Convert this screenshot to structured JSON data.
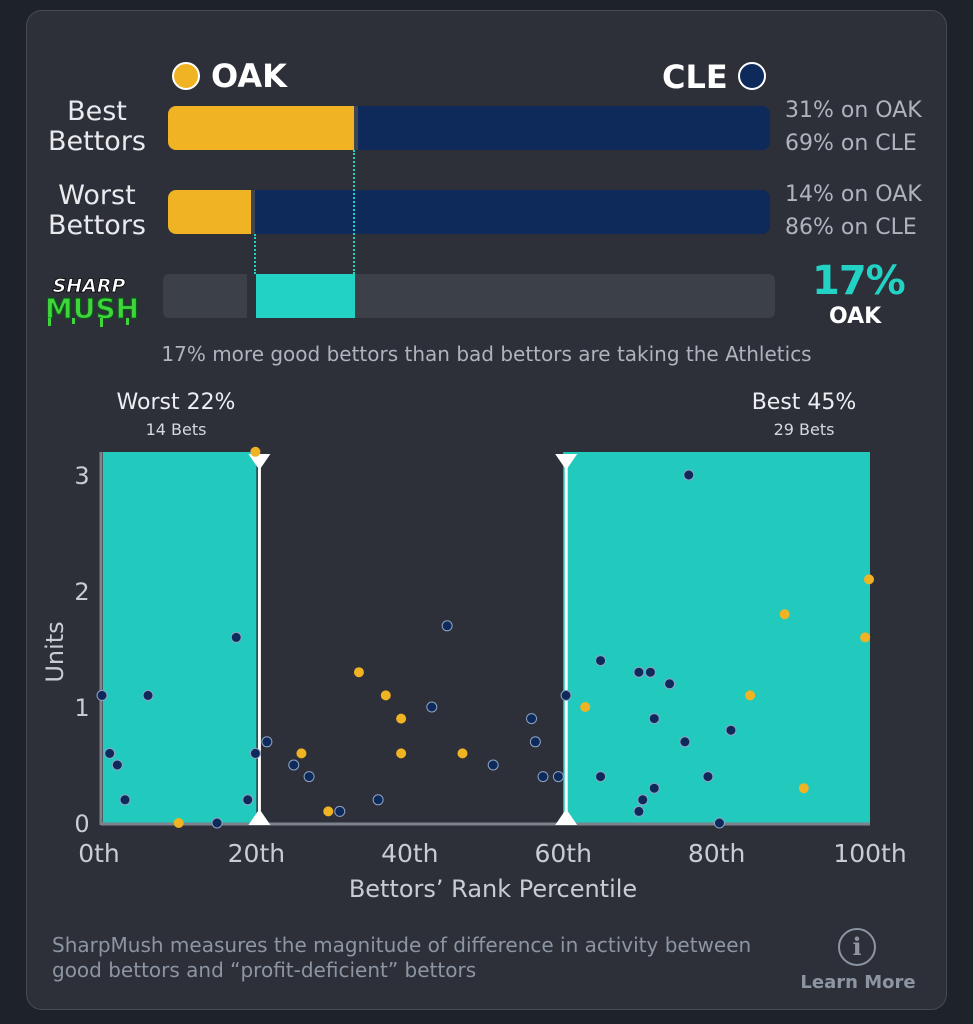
{
  "teams": {
    "oak": {
      "label": "OAK",
      "color": "#f0b323"
    },
    "cle": {
      "label": "CLE",
      "color": "#0e2a5a"
    }
  },
  "best_bettors": {
    "label_line1": "Best",
    "label_line2": "Bettors",
    "oak_share": 0.31,
    "cle_share": 0.69,
    "oak_text": "31% on OAK",
    "cle_text": "69% on CLE"
  },
  "worst_bettors": {
    "label_line1": "Worst",
    "label_line2": "Bettors",
    "oak_share": 0.14,
    "cle_share": 0.86,
    "oak_text": "14% on OAK",
    "cle_text": "86% on CLE"
  },
  "sharpmush": {
    "logo_line1": "SHARP",
    "logo_line2": "MUSH",
    "value_text": "17%",
    "team_text": "OAK",
    "accent": "#22d3c5",
    "summary": "17% more good bettors than bad bettors are taking the Athletics"
  },
  "zones": {
    "worst": {
      "title": "Worst 22%",
      "sub": "14 Bets"
    },
    "best": {
      "title": "Best 45%",
      "sub": "29 Bets"
    }
  },
  "chart_data": {
    "type": "scatter",
    "xlabel": "Bettors’ Rank Percentile",
    "ylabel": "Units",
    "xlim": [
      0,
      100
    ],
    "ylim": [
      0,
      3.2
    ],
    "x_ticks": [
      0,
      20,
      40,
      60,
      80,
      100
    ],
    "x_tick_labels": [
      "0th",
      "20th",
      "40th",
      "60th",
      "80th",
      "100th"
    ],
    "y_ticks": [
      0,
      1,
      2,
      3
    ],
    "y_tick_labels": [
      "0",
      "1",
      "2",
      "3"
    ],
    "shaded_ranges": [
      [
        0,
        20
      ],
      [
        60,
        100
      ]
    ],
    "markers": [
      20,
      60
    ],
    "series": [
      {
        "name": "OAK",
        "color": "#f0b323",
        "points": [
          [
            10,
            0
          ],
          [
            20,
            3.2
          ],
          [
            26,
            0.6
          ],
          [
            29.5,
            0.1
          ],
          [
            33.5,
            1.3
          ],
          [
            37,
            1.1
          ],
          [
            39,
            0.9
          ],
          [
            39,
            0.6
          ],
          [
            47,
            0.6
          ],
          [
            63,
            1.0
          ],
          [
            84.5,
            1.1
          ],
          [
            89,
            1.8
          ],
          [
            91.5,
            0.3
          ],
          [
            99.5,
            1.6
          ],
          [
            100,
            2.1
          ]
        ]
      },
      {
        "name": "CLE",
        "color": "#0e2a5a",
        "points": [
          [
            0,
            1.1
          ],
          [
            1,
            0.6
          ],
          [
            2,
            0.5
          ],
          [
            3,
            0.2
          ],
          [
            6,
            1.1
          ],
          [
            15,
            0
          ],
          [
            17.5,
            1.6
          ],
          [
            19,
            0.2
          ],
          [
            20,
            0.6
          ],
          [
            21.5,
            0.7
          ],
          [
            25,
            0.5
          ],
          [
            27,
            0.4
          ],
          [
            31,
            0.1
          ],
          [
            36,
            0.2
          ],
          [
            43,
            1.0
          ],
          [
            45,
            1.7
          ],
          [
            51,
            0.5
          ],
          [
            56,
            0.9
          ],
          [
            56.5,
            0.7
          ],
          [
            57.5,
            0.4
          ],
          [
            59.5,
            0.4
          ],
          [
            60.5,
            1.1
          ],
          [
            65,
            1.4
          ],
          [
            65,
            0.4
          ],
          [
            70,
            1.3
          ],
          [
            70,
            0.1
          ],
          [
            70.5,
            0.2
          ],
          [
            71.5,
            1.3
          ],
          [
            72,
            0.9
          ],
          [
            72,
            0.3
          ],
          [
            74,
            1.2
          ],
          [
            76,
            0.7
          ],
          [
            76.5,
            3.0
          ],
          [
            79,
            0.4
          ],
          [
            80.5,
            0
          ],
          [
            82,
            0.8
          ]
        ]
      }
    ]
  },
  "footer": {
    "text": "SharpMush measures the magnitude of difference in activity between good bettors and “profit-deficient” bettors",
    "learn_more": "Learn More",
    "info_glyph": "i"
  }
}
